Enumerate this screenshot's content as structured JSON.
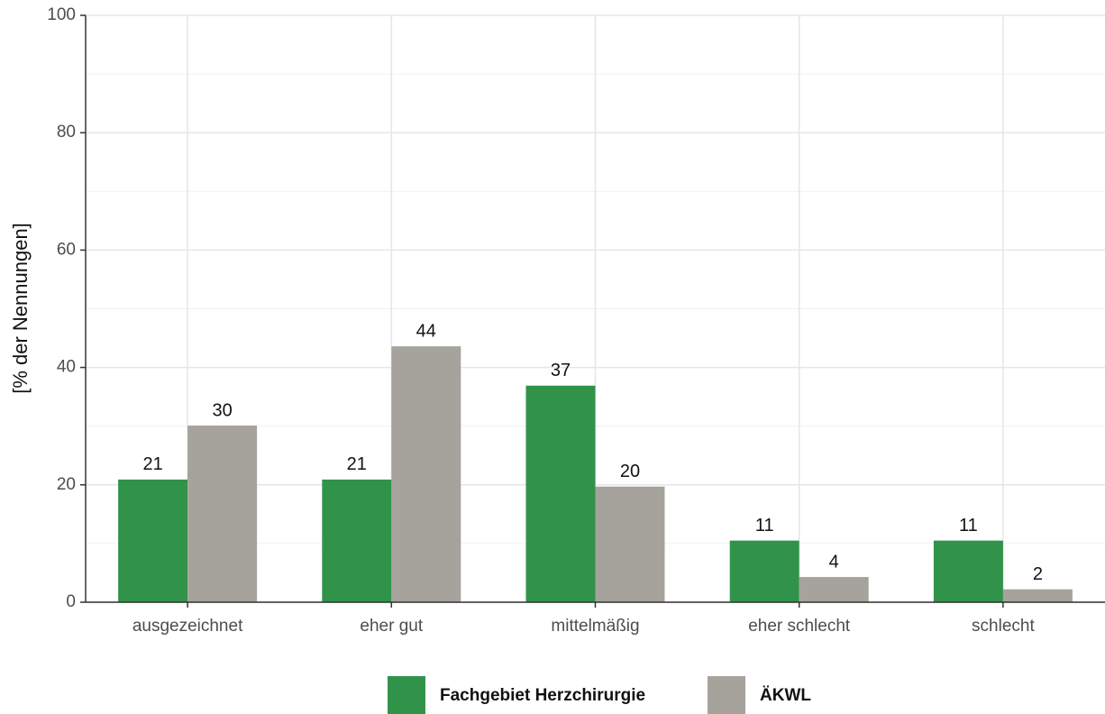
{
  "chart_data": {
    "type": "bar",
    "ylabel": "[% der Nennungen]",
    "categories": [
      "ausgezeichnet",
      "eher gut",
      "mittelmäßig",
      "eher schlecht",
      "schlecht"
    ],
    "series": [
      {
        "name": "Fachgebiet Herzchirurgie",
        "color": "#31934a",
        "values": [
          20.9,
          20.9,
          36.9,
          10.5,
          10.5
        ],
        "value_labels": [
          "21",
          "21",
          "37",
          "11",
          "11"
        ]
      },
      {
        "name": "ÄKWL",
        "color": "#a6a39c",
        "values": [
          30.1,
          43.6,
          19.7,
          4.3,
          2.2
        ],
        "value_labels": [
          "30",
          "44",
          "20",
          "4",
          "2"
        ]
      }
    ],
    "ylim": [
      0,
      100
    ],
    "yticks": [
      0,
      20,
      40,
      60,
      80,
      100
    ],
    "grid": true,
    "legend": "bottom"
  }
}
